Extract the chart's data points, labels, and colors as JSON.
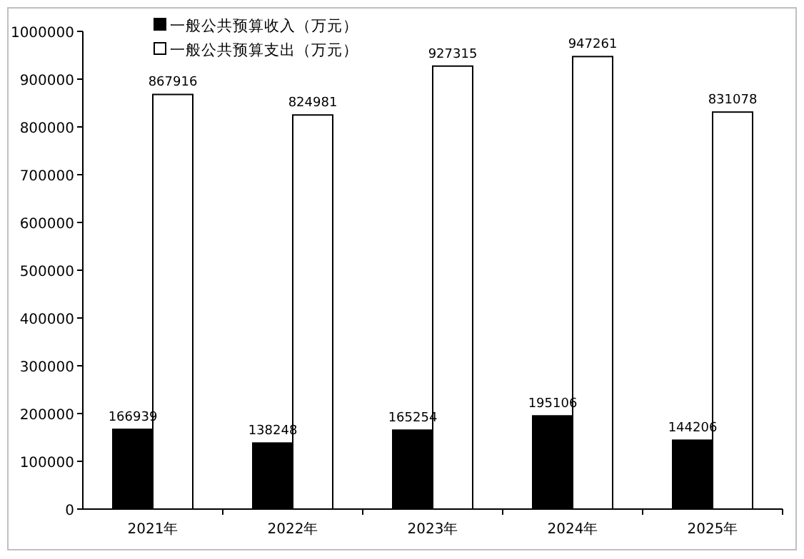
{
  "chart_data": {
    "type": "bar",
    "categories": [
      "2021年",
      "2022年",
      "2023年",
      "2024年",
      "2025年"
    ],
    "series": [
      {
        "name": "一般公共预算收入（万元）",
        "color": "#000000",
        "values": [
          166939,
          138248,
          165254,
          195106,
          144206
        ]
      },
      {
        "name": "一般公共预算支出（万元）",
        "color": "#ffffff",
        "values": [
          867916,
          824981,
          927315,
          947261,
          831078
        ]
      }
    ],
    "ylim": [
      0,
      1000000
    ],
    "yticks": [
      0,
      100000,
      200000,
      300000,
      400000,
      500000,
      600000,
      700000,
      800000,
      900000,
      1000000
    ],
    "data_labels": true,
    "legend": "top left",
    "grid": false
  }
}
